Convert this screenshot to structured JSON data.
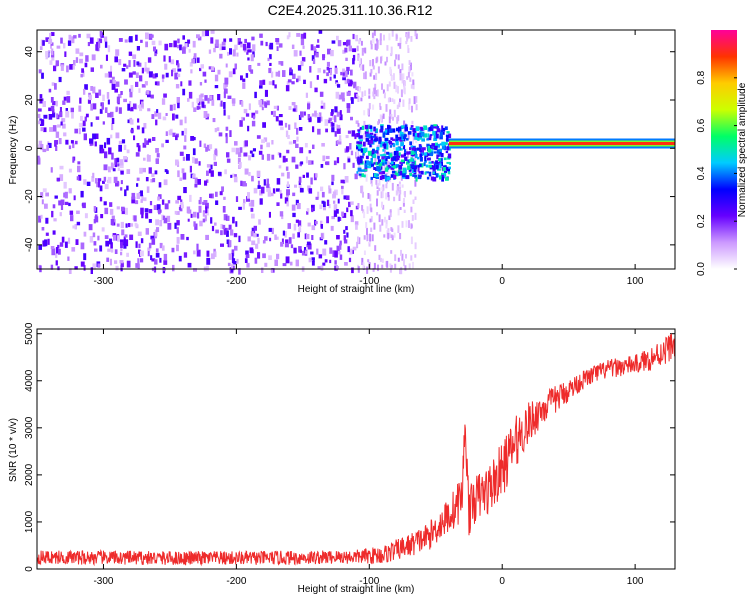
{
  "title": "C2E4.2025.311.10.36.R12",
  "chart_data": [
    {
      "type": "heatmap",
      "title": "C2E4.2025.311.10.36.R12",
      "xlabel": "Height of straight line (km)",
      "ylabel": "Frequency (Hz)",
      "xlim": [
        -350,
        130
      ],
      "ylim": [
        -50,
        49
      ],
      "xticks": [
        -300,
        -200,
        -100,
        0,
        100
      ],
      "xtick_labels": [
        "-300",
        "-200",
        "-100",
        "0",
        "100"
      ],
      "yticks": [
        -40,
        -20,
        0,
        20,
        40
      ],
      "ytick_labels": [
        "-40",
        "-20",
        "0",
        "20",
        "40"
      ],
      "colorbar": {
        "label": "Normalized spectral amplitude",
        "range": [
          0,
          1
        ],
        "ticks": [
          0.0,
          0.2,
          0.4,
          0.6,
          0.8
        ],
        "tick_labels": [
          "0.0",
          "0.2",
          "0.4",
          "0.6",
          "0.8"
        ],
        "colors": [
          "#ffffff",
          "#cc99ff",
          "#6600ff",
          "#0000ff",
          "#00ccff",
          "#00ff66",
          "#ccff00",
          "#ffcc00",
          "#ff3300",
          "#ff0099"
        ]
      },
      "regions": [
        {
          "name": "noise",
          "x": [
            -350,
            -110
          ],
          "freq": [
            -50,
            49
          ],
          "amplitude": 0.18
        },
        {
          "name": "fading",
          "x": [
            -110,
            -65
          ],
          "freq": [
            -50,
            49
          ],
          "amplitude": 0.1
        },
        {
          "name": "onset",
          "x": [
            -110,
            -40
          ],
          "freq": [
            -12,
            10
          ],
          "amplitude": 0.35
        },
        {
          "name": "signal-line",
          "x": [
            -40,
            130
          ],
          "freq": [
            1,
            3
          ],
          "amplitude": 0.9
        }
      ],
      "signal_band": {
        "x": [
          -40,
          130
        ],
        "center_hz": 2,
        "amplitude": 0.9
      }
    },
    {
      "type": "line",
      "title": "",
      "xlabel": "Height of straight line (km)",
      "ylabel": "SNR (10 * v/v)",
      "xlim": [
        -350,
        130
      ],
      "ylim": [
        0,
        5100
      ],
      "xticks": [
        -300,
        -200,
        -100,
        0,
        100
      ],
      "xtick_labels": [
        "-300",
        "-200",
        "-100",
        "0",
        "100"
      ],
      "yticks": [
        0,
        1000,
        2000,
        3000,
        4000,
        5000
      ],
      "ytick_labels": [
        "0",
        "1000",
        "2000",
        "3000",
        "4000",
        "5000"
      ],
      "color": "#ee2b2b",
      "series": [
        {
          "name": "SNR",
          "x": [
            -350,
            -300,
            -250,
            -200,
            -150,
            -110,
            -90,
            -70,
            -55,
            -45,
            -35,
            -30,
            -28,
            -25,
            -20,
            -10,
            0,
            10,
            20,
            30,
            40,
            50,
            60,
            70,
            80,
            90,
            100,
            110,
            120,
            130
          ],
          "values": [
            250,
            240,
            230,
            230,
            240,
            260,
            300,
            500,
            700,
            1000,
            1300,
            1600,
            3150,
            1200,
            1500,
            1700,
            2100,
            2700,
            3100,
            3400,
            3600,
            3800,
            4000,
            4150,
            4250,
            4300,
            4350,
            4450,
            4600,
            4800
          ],
          "noise_amplitude": [
            150,
            150,
            150,
            150,
            150,
            150,
            200,
            250,
            300,
            350,
            450,
            500,
            300,
            500,
            500,
            550,
            600,
            550,
            450,
            350,
            300,
            250,
            200,
            200,
            200,
            200,
            200,
            250,
            300,
            300
          ]
        }
      ]
    }
  ]
}
